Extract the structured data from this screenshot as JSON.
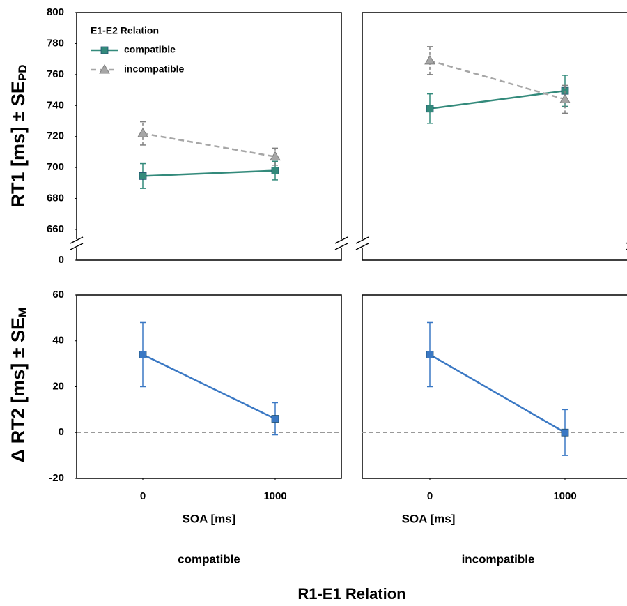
{
  "figure": {
    "top_ylabel": "RT1 [ms] ± SE",
    "top_ylabel_sub": "PD",
    "bottom_ylabel": "Δ RT2 [ms] ± SE",
    "bottom_ylabel_sub": "M",
    "columns": [
      "compatible",
      "incompatible"
    ],
    "group_label": "R1-E1 Relation"
  },
  "chart_data": [
    {
      "type": "line",
      "x": [
        0,
        1000
      ],
      "xlim": [
        -500,
        1500
      ],
      "ylim": [
        660,
        800
      ],
      "yticks": [
        0,
        660,
        680,
        700,
        720,
        740,
        760,
        780,
        800
      ],
      "axis_break": true,
      "legend": "upper left",
      "legend_title": "E1-E2 Relation",
      "series": [
        {
          "name": "compatible",
          "color": "#338a7b",
          "marker": "square",
          "dashed": false,
          "values": [
            694.5,
            698
          ],
          "errors": [
            8,
            6
          ]
        },
        {
          "name": "incompatible",
          "color": "#a6a6a6",
          "marker": "triangle",
          "dashed": true,
          "values": [
            722,
            707
          ],
          "errors": [
            7.5,
            5.5
          ]
        }
      ]
    },
    {
      "type": "line",
      "x": [
        0,
        1000
      ],
      "xlim": [
        -500,
        1500
      ],
      "ylim": [
        660,
        800
      ],
      "axis_break": true,
      "series": [
        {
          "name": "compatible",
          "color": "#338a7b",
          "marker": "square",
          "dashed": false,
          "values": [
            738,
            749.5
          ],
          "errors": [
            9.5,
            10
          ]
        },
        {
          "name": "incompatible",
          "color": "#a6a6a6",
          "marker": "triangle",
          "dashed": true,
          "values": [
            769,
            744
          ],
          "errors": [
            9,
            9
          ]
        }
      ]
    },
    {
      "type": "line",
      "x": [
        0,
        1000
      ],
      "xlim": [
        -500,
        1500
      ],
      "xticks": [
        0,
        1000
      ],
      "x_label": "SOA [ms]",
      "ylim": [
        -20,
        60
      ],
      "yticks": [
        -20,
        0,
        20,
        40,
        60
      ],
      "hline": 0,
      "series": [
        {
          "color": "#3a78c4",
          "marker": "square",
          "dashed": false,
          "values": [
            34,
            6
          ],
          "errors": [
            14,
            7
          ]
        }
      ]
    },
    {
      "type": "line",
      "x": [
        0,
        1000
      ],
      "xlim": [
        -500,
        1500
      ],
      "xticks": [
        0,
        1000
      ],
      "x_label": "SOA [ms]",
      "ylim": [
        -20,
        60
      ],
      "hline": 0,
      "series": [
        {
          "color": "#3a78c4",
          "marker": "square",
          "dashed": false,
          "values": [
            34,
            0
          ],
          "errors": [
            14,
            10
          ]
        }
      ]
    }
  ]
}
